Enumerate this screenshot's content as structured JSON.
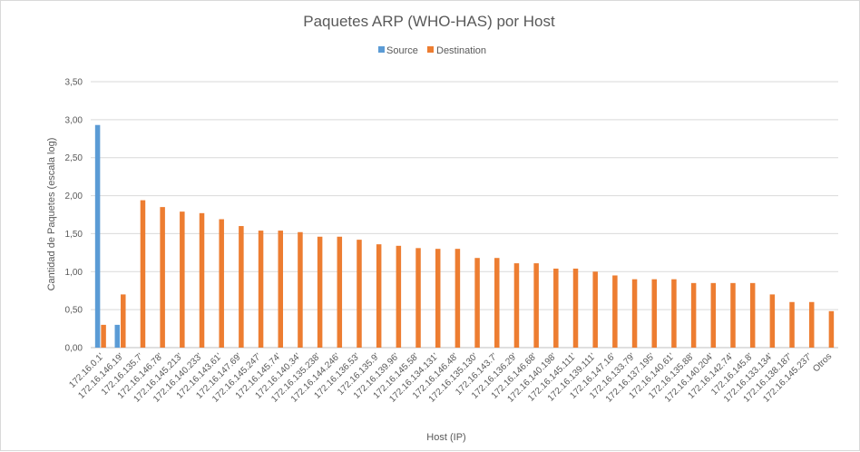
{
  "chart_data": {
    "type": "bar",
    "title": "Paquetes ARP (WHO-HAS) por Host",
    "xlabel": "Host (IP)",
    "ylabel": "Cantidad de Paquetes (escala log)",
    "ylim": [
      0,
      3.5
    ],
    "ytick_step": 0.5,
    "ytick_labels": [
      "0,00",
      "0,50",
      "1,00",
      "1,50",
      "2,00",
      "2,50",
      "3,00",
      "3,50"
    ],
    "grid": true,
    "legend_position": "top",
    "categories": [
      "172.16.0.1'",
      "172.16.146.19'",
      "172.16.135.7'",
      "172.16.146.78'",
      "172.16.145.213'",
      "172.16.140.233'",
      "172.16.143.61'",
      "172.16.147.69'",
      "172.16.145.247'",
      "172.16.145.74'",
      "172.16.140.34'",
      "172.16.135.238'",
      "172.16.144.246'",
      "172.16.136.53'",
      "172.16.135.9'",
      "172.16.139.96'",
      "172.16.145.58'",
      "172.16.134.131'",
      "172.16.146.48'",
      "172.16.135.130'",
      "172.16.143.7'",
      "172.16.136.29'",
      "172.16.146.68'",
      "172.16.140.198'",
      "172.16.145.111'",
      "172.16.139.111'",
      "172.16.147.16'",
      "172.16.133.79'",
      "172.16.137.195'",
      "172.16.140.61'",
      "172.16.135.88'",
      "172.16.140.204'",
      "172.16.142.74'",
      "172.16.145.8'",
      "172.16.133.134'",
      "172.16.138.187'",
      "172.16.145.237'",
      "Otros"
    ],
    "series": [
      {
        "name": "Source",
        "color": "#5b9bd5",
        "values": [
          2.93,
          0.3,
          0,
          0,
          0,
          0,
          0,
          0,
          0,
          0,
          0,
          0,
          0,
          0,
          0,
          0,
          0,
          0,
          0,
          0,
          0,
          0,
          0,
          0,
          0,
          0,
          0,
          0,
          0,
          0,
          0,
          0,
          0,
          0,
          0,
          0,
          0,
          0
        ]
      },
      {
        "name": "Destination",
        "color": "#ed7d31",
        "values": [
          0.3,
          0.7,
          1.94,
          1.85,
          1.79,
          1.77,
          1.69,
          1.6,
          1.54,
          1.54,
          1.52,
          1.46,
          1.46,
          1.42,
          1.36,
          1.34,
          1.31,
          1.3,
          1.3,
          1.18,
          1.18,
          1.11,
          1.11,
          1.04,
          1.04,
          1.0,
          0.95,
          0.9,
          0.9,
          0.9,
          0.85,
          0.85,
          0.85,
          0.85,
          0.7,
          0.6,
          0.6,
          0.48
        ]
      }
    ]
  }
}
